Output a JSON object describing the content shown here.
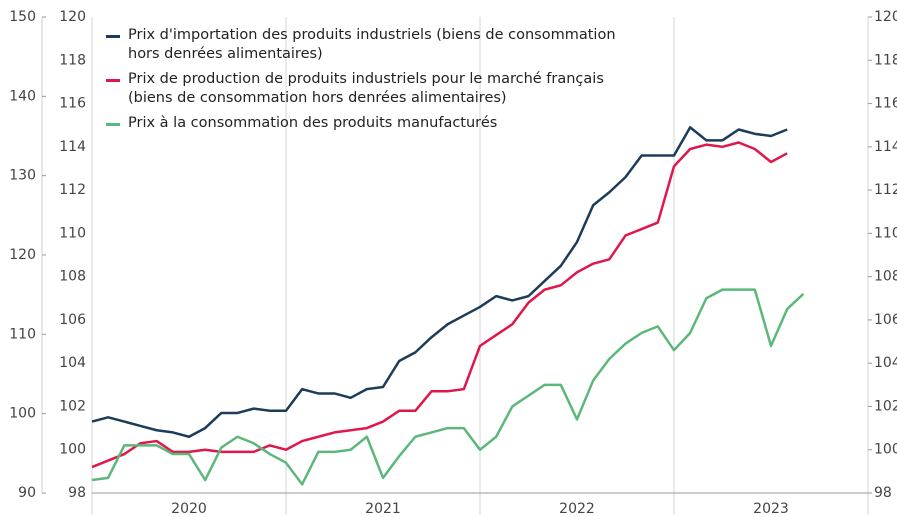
{
  "chart_data": {
    "type": "line",
    "categories": [
      null,
      null,
      null,
      null,
      null,
      null,
      "2020",
      null,
      null,
      null,
      null,
      null,
      null,
      null,
      null,
      null,
      null,
      null,
      "2021",
      null,
      null,
      null,
      null,
      null,
      null,
      null,
      null,
      null,
      null,
      null,
      "2022",
      null,
      null,
      null,
      null,
      null,
      null,
      null,
      null,
      null,
      null,
      null,
      "2023",
      null,
      null
    ],
    "series": [
      {
        "name": "Prix d'importation des produits industriels (biens de consommation hors denrées alimentaires)",
        "color": "#1d3c5a",
        "values": [
          101.3,
          101.5,
          101.3,
          101.1,
          100.9,
          100.8,
          100.6,
          101.0,
          101.7,
          101.7,
          101.9,
          101.8,
          101.8,
          102.8,
          102.6,
          102.6,
          102.4,
          102.8,
          102.9,
          104.1,
          104.5,
          105.2,
          105.8,
          106.2,
          106.6,
          107.1,
          106.9,
          107.1,
          107.8,
          108.5,
          109.6,
          111.3,
          111.9,
          112.6,
          113.6,
          113.6,
          113.6,
          114.9,
          114.3,
          114.3,
          114.8,
          114.6,
          114.5,
          114.8,
          null
        ]
      },
      {
        "name": "Prix de production de produits industriels pour le marché français (biens de consommation hors denrées alimentaires)",
        "color": "#e0174a",
        "values": [
          99.2,
          99.5,
          99.8,
          100.3,
          100.4,
          99.9,
          99.9,
          100.0,
          99.9,
          99.9,
          99.9,
          100.2,
          100.0,
          100.4,
          100.6,
          100.8,
          100.9,
          101.0,
          101.3,
          101.8,
          101.8,
          102.7,
          102.7,
          102.8,
          104.8,
          105.3,
          105.8,
          106.8,
          107.4,
          107.6,
          108.2,
          108.6,
          108.8,
          109.9,
          110.2,
          110.5,
          113.1,
          113.9,
          114.1,
          114.0,
          114.2,
          113.9,
          113.3,
          113.7,
          null
        ]
      },
      {
        "name": "Prix à la consommation des produits manufacturés",
        "color": "#5cb87a",
        "values": [
          98.6,
          98.7,
          100.2,
          100.2,
          100.2,
          99.8,
          99.8,
          98.6,
          100.1,
          100.6,
          100.3,
          99.8,
          99.4,
          98.4,
          99.9,
          99.9,
          100.0,
          100.6,
          98.7,
          99.7,
          100.6,
          100.8,
          101.0,
          101.0,
          100.0,
          100.6,
          102.0,
          102.5,
          103.0,
          103.0,
          101.4,
          103.2,
          104.2,
          104.9,
          105.4,
          105.7,
          104.6,
          105.4,
          107.0,
          107.4,
          107.4,
          107.4,
          104.8,
          106.5,
          107.2
        ]
      }
    ],
    "ylim": [
      98,
      120
    ],
    "yticks": [
      98,
      100,
      102,
      104,
      106,
      108,
      110,
      112,
      114,
      116,
      118,
      120
    ],
    "y2lim": [
      90,
      150
    ],
    "y2ticks": [
      90,
      100,
      110,
      120,
      130,
      140,
      150
    ],
    "legend": "top-left"
  }
}
